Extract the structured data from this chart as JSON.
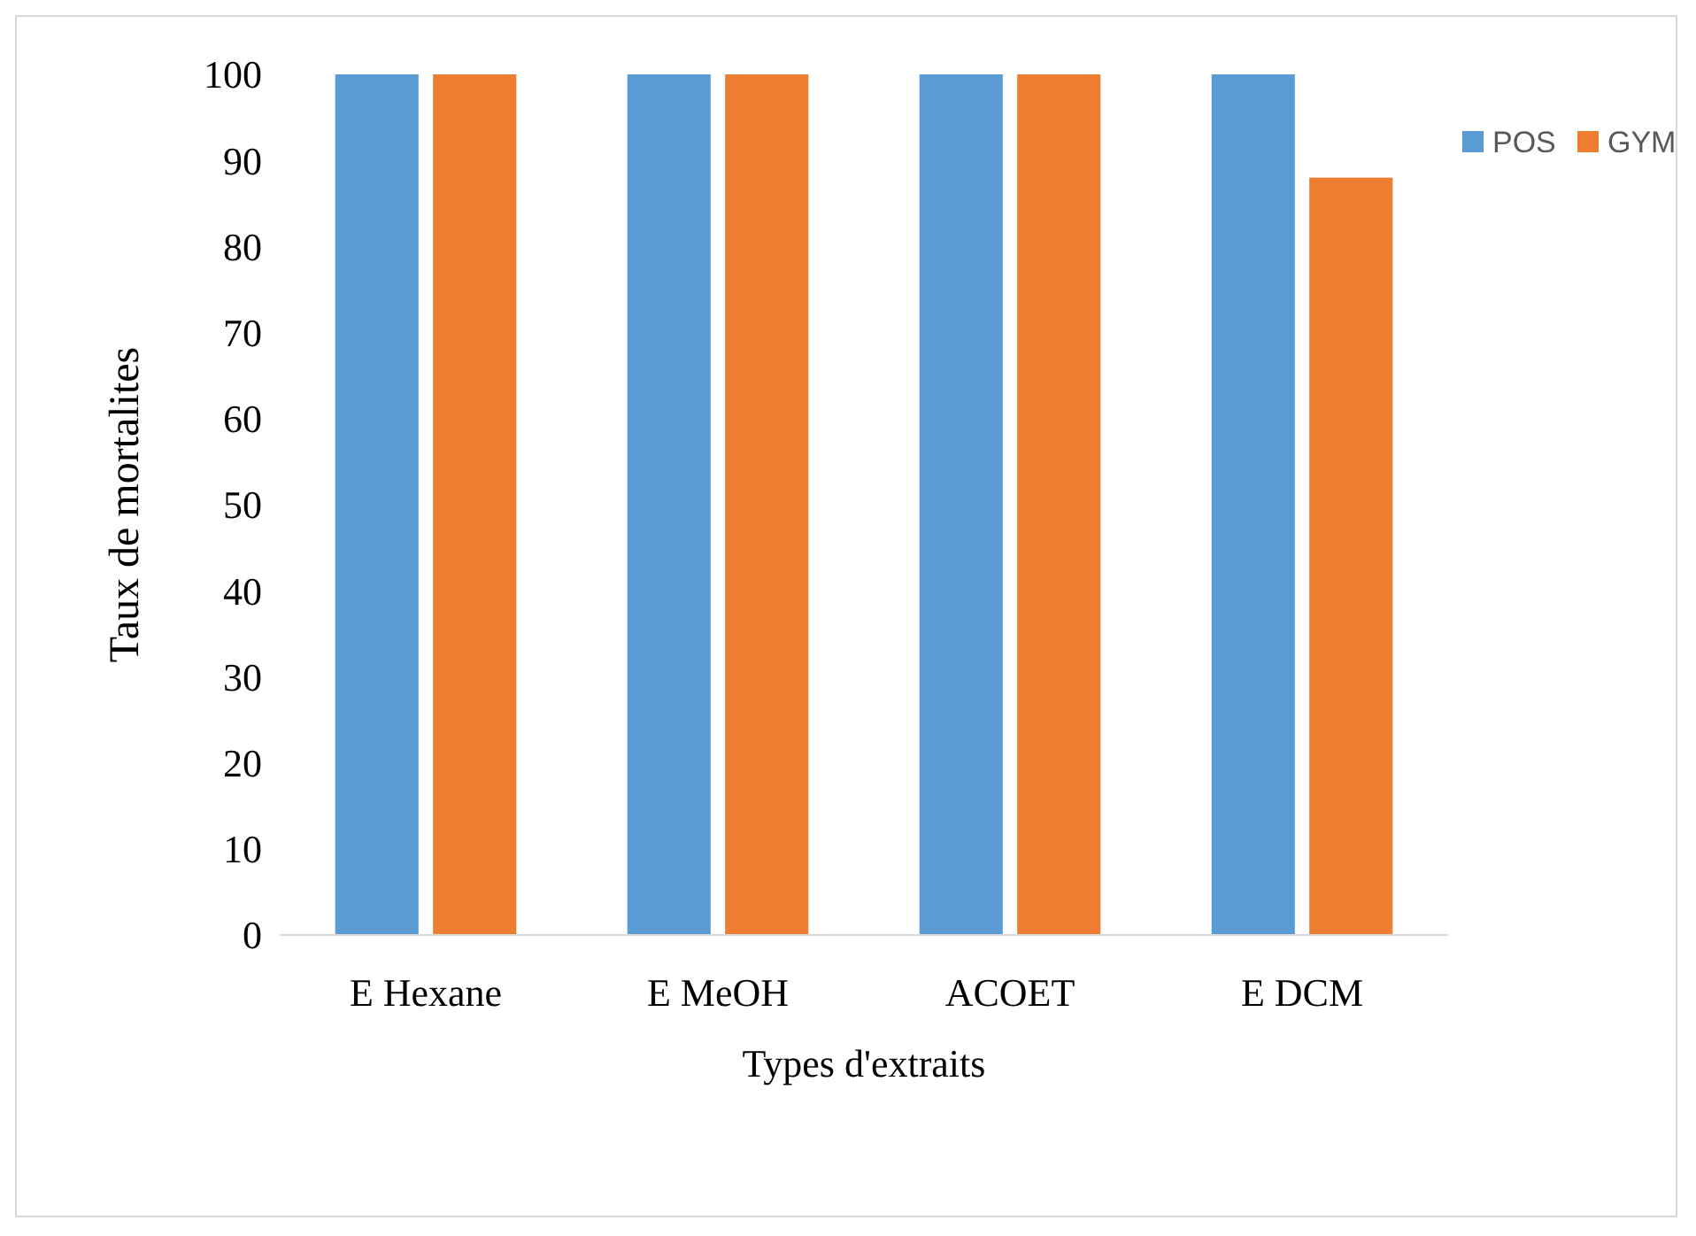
{
  "chart_data": {
    "type": "bar",
    "xlabel": "Types d'extraits",
    "ylabel": "Taux de mortalites",
    "categories": [
      "E Hexane",
      "E MeOH",
      "ACOET",
      "E DCM"
    ],
    "series": [
      {
        "name": "POS",
        "color": "#5b9bd5",
        "values": [
          100,
          100,
          100,
          100
        ]
      },
      {
        "name": "GYM",
        "color": "#ed7d31",
        "values": [
          100,
          100,
          100,
          88
        ]
      }
    ],
    "ylim": [
      0,
      100
    ],
    "yticks": [
      0,
      10,
      20,
      30,
      40,
      50,
      60,
      70,
      80,
      90,
      100
    ],
    "grid": false,
    "legend": "right"
  }
}
